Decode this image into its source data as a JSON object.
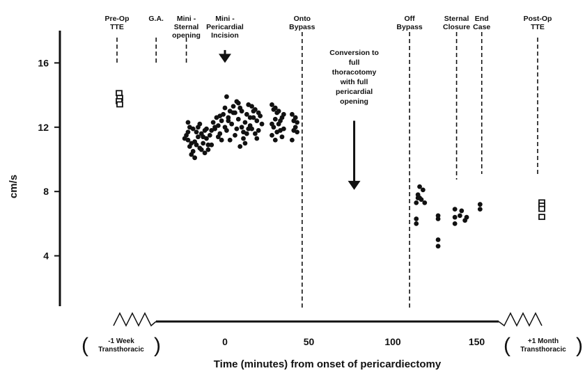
{
  "chart_data": {
    "type": "scatter",
    "title": "",
    "xlabel": "Time (minutes) from onset of pericardiectomy",
    "ylabel": "cm/s",
    "xlim": [
      -45,
      165
    ],
    "ylim": [
      0,
      18
    ],
    "x_ticks": [
      0,
      50,
      100,
      150
    ],
    "y_ticks": [
      4,
      8,
      12,
      16
    ],
    "grid": false,
    "legend": "none",
    "pre_op_label": [
      "-1 Week",
      "Transthoracic"
    ],
    "post_op_label": [
      "+1 Month",
      "Transthoracic"
    ],
    "events": [
      {
        "label": [
          "Pre-Op",
          "TTE"
        ],
        "x": null,
        "pos": "pre"
      },
      {
        "label": [
          "G.A."
        ],
        "x": -41
      },
      {
        "label": [
          "Mini -",
          "Sternal",
          "opening"
        ],
        "x": -23
      },
      {
        "label": [
          "Mini -",
          "Pericardial",
          "Incision"
        ],
        "x": 0
      },
      {
        "label": [
          "Onto",
          "Bypass"
        ],
        "x": 46
      },
      {
        "label": [
          "Conversion to",
          "full",
          "thoracotomy",
          "with full",
          "pericardial",
          "opening"
        ],
        "x": 77
      },
      {
        "label": [
          "Off",
          "Bypass"
        ],
        "x": 110
      },
      {
        "label": [
          "Sternal",
          "Closure"
        ],
        "x": 138
      },
      {
        "label": [
          "End",
          "Case"
        ],
        "x": 153
      },
      {
        "label": [
          "Post-Op",
          "TTE"
        ],
        "x": null,
        "pos": "post"
      }
    ],
    "pre_op_points": [
      14.1,
      13.8,
      13.6,
      13.4
    ],
    "post_op_points": [
      7.3,
      7.1,
      6.9,
      6.4
    ],
    "points": [
      [
        -20,
        11.0
      ],
      [
        -21,
        10.8
      ],
      [
        -22,
        11.2
      ],
      [
        -19,
        10.5
      ],
      [
        -18,
        11.1
      ],
      [
        -20,
        10.3
      ],
      [
        -17,
        10.9
      ],
      [
        -16,
        11.4
      ],
      [
        -15,
        10.7
      ],
      [
        -18,
        10.1
      ],
      [
        -14,
        10.6
      ],
      [
        -13,
        11.0
      ],
      [
        -12,
        10.4
      ],
      [
        -11,
        11.3
      ],
      [
        -10,
        10.9
      ],
      [
        -9,
        11.5
      ],
      [
        -12,
        11.8
      ],
      [
        -14,
        11.6
      ],
      [
        -16,
        12.0
      ],
      [
        -22,
        11.7
      ],
      [
        -23,
        11.5
      ],
      [
        -24,
        11.3
      ],
      [
        -22,
        12.3
      ],
      [
        -21,
        12.0
      ],
      [
        -19,
        11.9
      ],
      [
        -17,
        11.7
      ],
      [
        -15,
        12.2
      ],
      [
        -8,
        11.8
      ],
      [
        -7,
        12.3
      ],
      [
        -6,
        11.9
      ],
      [
        -5,
        12.6
      ],
      [
        -4,
        12.1
      ],
      [
        -3,
        11.6
      ],
      [
        -2,
        12.4
      ],
      [
        -1,
        12.8
      ],
      [
        0,
        12.0
      ],
      [
        1,
        11.8
      ],
      [
        2,
        12.6
      ],
      [
        3,
        13.0
      ],
      [
        4,
        12.2
      ],
      [
        5,
        12.9
      ],
      [
        6,
        11.5
      ],
      [
        7,
        11.9
      ],
      [
        8,
        12.5
      ],
      [
        9,
        13.2
      ],
      [
        10,
        12.0
      ],
      [
        11,
        11.7
      ],
      [
        12,
        12.3
      ],
      [
        13,
        12.8
      ],
      [
        14,
        13.4
      ],
      [
        15,
        12.1
      ],
      [
        16,
        11.9
      ],
      [
        17,
        12.6
      ],
      [
        18,
        13.1
      ],
      [
        19,
        12.4
      ],
      [
        20,
        11.8
      ],
      [
        21,
        12.7
      ],
      [
        -6,
        12.0
      ],
      [
        -4,
        11.4
      ],
      [
        -2,
        11.2
      ],
      [
        0,
        13.2
      ],
      [
        2,
        12.4
      ],
      [
        3,
        11.2
      ],
      [
        6,
        12.9
      ],
      [
        7,
        13.6
      ],
      [
        10,
        13.0
      ],
      [
        12,
        11.0
      ],
      [
        14,
        11.9
      ],
      [
        16,
        13.3
      ],
      [
        18,
        11.6
      ],
      [
        20,
        12.9
      ],
      [
        22,
        12.2
      ],
      [
        9,
        10.8
      ],
      [
        11,
        11.3
      ],
      [
        13,
        11.6
      ],
      [
        15,
        12.6
      ],
      [
        17,
        13.0
      ],
      [
        19,
        11.3
      ],
      [
        1,
        13.9
      ],
      [
        5,
        13.3
      ],
      [
        -10,
        10.6
      ],
      [
        -11,
        11.9
      ],
      [
        -13,
        11.4
      ],
      [
        -8,
        10.9
      ],
      [
        -3,
        12.7
      ],
      [
        8,
        13.5
      ],
      [
        28,
        13.4
      ],
      [
        29,
        13.1
      ],
      [
        30,
        12.5
      ],
      [
        31,
        12.9
      ],
      [
        32,
        12.2
      ],
      [
        33,
        11.8
      ],
      [
        34,
        12.6
      ],
      [
        28,
        11.5
      ],
      [
        29,
        12.0
      ],
      [
        30,
        11.2
      ],
      [
        31,
        11.7
      ],
      [
        32,
        13.0
      ],
      [
        33,
        12.4
      ],
      [
        34,
        11.4
      ],
      [
        35,
        12.8
      ],
      [
        28,
        12.2
      ],
      [
        30,
        13.2
      ],
      [
        35,
        11.9
      ],
      [
        40,
        12.8
      ],
      [
        41,
        12.4
      ],
      [
        42,
        12.0
      ],
      [
        43,
        11.7
      ],
      [
        40,
        11.2
      ],
      [
        41,
        11.8
      ],
      [
        42,
        12.6
      ],
      [
        43,
        12.3
      ]
    ],
    "off_bypass_points": [
      [
        114,
        6.0
      ],
      [
        114,
        6.3
      ],
      [
        114,
        7.3
      ],
      [
        115,
        7.6
      ],
      [
        115,
        7.8
      ],
      [
        116,
        8.3
      ],
      [
        117,
        7.5
      ],
      [
        118,
        8.1
      ],
      [
        119,
        7.3
      ],
      [
        116,
        7.6
      ]
    ],
    "closure_points": [
      [
        127,
        4.6
      ],
      [
        127,
        5.0
      ],
      [
        127,
        6.3
      ],
      [
        127,
        6.5
      ],
      [
        137,
        6.0
      ],
      [
        137,
        6.4
      ],
      [
        137,
        6.9
      ],
      [
        140,
        6.5
      ],
      [
        141,
        6.8
      ],
      [
        143,
        6.2
      ],
      [
        144,
        6.4
      ],
      [
        152,
        6.9
      ],
      [
        152,
        7.2
      ]
    ],
    "conversion_arrow": {
      "x": 77,
      "from": 12.4,
      "to": 8.1
    },
    "incision_arrow": {
      "x": 0,
      "from": 16.8,
      "to": 16.0
    }
  }
}
